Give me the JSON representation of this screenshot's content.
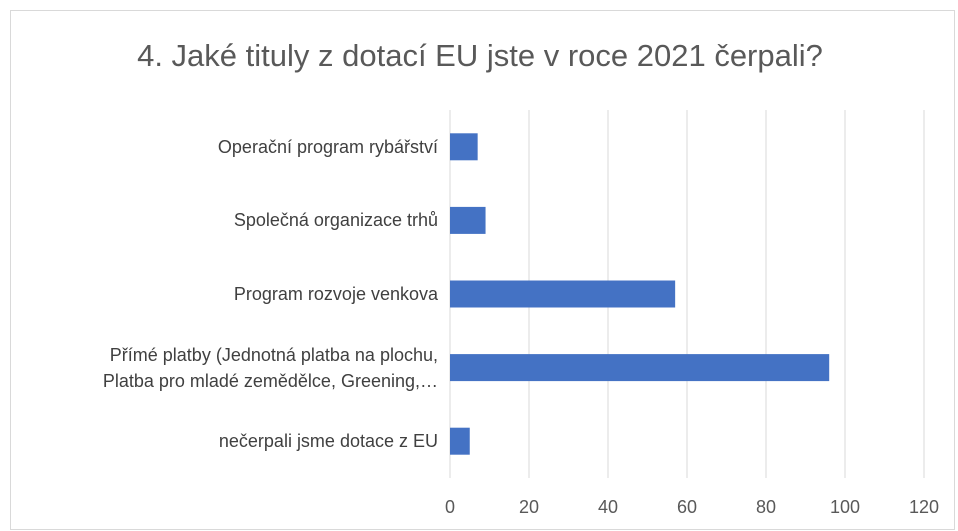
{
  "chart_data": {
    "type": "barh",
    "title": "4. Jaké tituly z dotací EU jste v roce 2021 čerpali?",
    "categories": [
      "Operační program rybářství",
      "Společná organizace trhů",
      "Program rozvoje venkova",
      "Přímé platby (Jednotná platba na plochu,\nPlatba pro mladé zemědělce, Greening,…",
      "nečerpali jsme dotace z EU"
    ],
    "values": [
      7,
      9,
      57,
      96,
      5
    ],
    "color": "#4472c4",
    "xlim": [
      0,
      120
    ],
    "xticks": [
      0,
      20,
      40,
      60,
      80,
      100,
      120
    ],
    "grid": true
  }
}
